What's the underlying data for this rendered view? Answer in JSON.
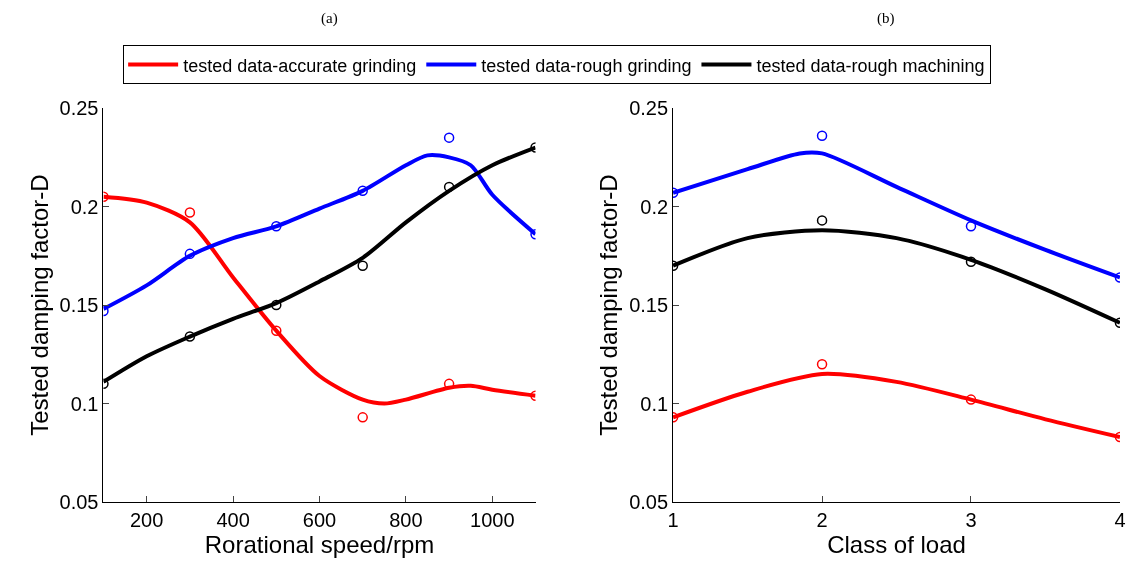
{
  "chart_data": [
    {
      "type": "line",
      "title": "(a)",
      "xlabel": "Rorational speed/rpm",
      "ylabel": "Tested damping factor-D",
      "xlim": [
        100,
        1100
      ],
      "xticks": [
        200,
        400,
        600,
        800,
        1000
      ],
      "ylim": [
        0.05,
        0.25
      ],
      "yticks": [
        0.05,
        0.1,
        0.15,
        0.2,
        0.25
      ],
      "legend": "top",
      "series": [
        {
          "name": "tested data-accurate grinding",
          "color": "#ff0000",
          "x": [
            100,
            200,
            300,
            400,
            500,
            600,
            700,
            750,
            800,
            900,
            950,
            1000,
            1100
          ],
          "values": [
            0.205,
            0.202,
            0.192,
            0.164,
            0.137,
            0.114,
            0.102,
            0.1,
            0.102,
            0.108,
            0.109,
            0.107,
            0.104
          ]
        },
        {
          "name": "tested data-rough grinding",
          "color": "#0000ff",
          "x": [
            100,
            200,
            300,
            400,
            500,
            600,
            700,
            800,
            850,
            900,
            950,
            1000,
            1100
          ],
          "values": [
            0.148,
            0.16,
            0.175,
            0.184,
            0.19,
            0.199,
            0.208,
            0.221,
            0.226,
            0.225,
            0.221,
            0.206,
            0.186
          ]
        },
        {
          "name": "tested data-rough machining",
          "color": "#000000",
          "x": [
            100,
            200,
            300,
            400,
            500,
            600,
            700,
            800,
            900,
            1000,
            1100
          ],
          "values": [
            0.111,
            0.124,
            0.134,
            0.143,
            0.151,
            0.162,
            0.174,
            0.192,
            0.208,
            0.221,
            0.23
          ]
        },
        {
          "type": "scatter",
          "marker": "circle",
          "color": "#ff0000",
          "x": [
            100,
            300,
            500,
            700,
            900,
            1100
          ],
          "values": [
            0.205,
            0.197,
            0.137,
            0.093,
            0.11,
            0.104
          ]
        },
        {
          "type": "scatter",
          "marker": "circle",
          "color": "#0000ff",
          "x": [
            100,
            300,
            500,
            700,
            900,
            1100
          ],
          "values": [
            0.147,
            0.176,
            0.19,
            0.208,
            0.235,
            0.186
          ]
        },
        {
          "type": "scatter",
          "marker": "circle",
          "color": "#000000",
          "x": [
            100,
            300,
            500,
            700,
            900,
            1100
          ],
          "values": [
            0.11,
            0.134,
            0.15,
            0.17,
            0.21,
            0.23
          ]
        }
      ]
    },
    {
      "type": "line",
      "title": "(b)",
      "xlabel": "Class of load",
      "ylabel": "Tested damping factor-D",
      "xlim": [
        1,
        4
      ],
      "xticks": [
        1,
        2,
        3,
        4
      ],
      "ylim": [
        0.05,
        0.25
      ],
      "yticks": [
        0.05,
        0.1,
        0.15,
        0.2,
        0.25
      ],
      "legend": "top",
      "series": [
        {
          "name": "tested data-accurate grinding",
          "color": "#ff0000",
          "x": [
            1,
            1.5,
            2,
            2.5,
            3,
            3.5,
            4
          ],
          "values": [
            0.093,
            0.106,
            0.115,
            0.111,
            0.102,
            0.092,
            0.083
          ]
        },
        {
          "name": "tested data-rough grinding",
          "color": "#0000ff",
          "x": [
            1,
            1.5,
            1.85,
            2,
            2.5,
            3,
            3.5,
            4
          ],
          "values": [
            0.207,
            0.219,
            0.227,
            0.227,
            0.21,
            0.193,
            0.178,
            0.164
          ]
        },
        {
          "name": "tested data-rough machining",
          "color": "#000000",
          "x": [
            1,
            1.5,
            2,
            2.5,
            3,
            3.5,
            4
          ],
          "values": [
            0.17,
            0.184,
            0.188,
            0.184,
            0.173,
            0.158,
            0.141
          ]
        },
        {
          "type": "scatter",
          "marker": "circle",
          "color": "#ff0000",
          "x": [
            1,
            2,
            3,
            4
          ],
          "values": [
            0.093,
            0.12,
            0.102,
            0.083
          ]
        },
        {
          "type": "scatter",
          "marker": "circle",
          "color": "#0000ff",
          "x": [
            1,
            2,
            3,
            4
          ],
          "values": [
            0.207,
            0.236,
            0.19,
            0.164
          ]
        },
        {
          "type": "scatter",
          "marker": "circle",
          "color": "#000000",
          "x": [
            1,
            2,
            3,
            4
          ],
          "values": [
            0.17,
            0.193,
            0.172,
            0.141
          ]
        }
      ]
    }
  ]
}
